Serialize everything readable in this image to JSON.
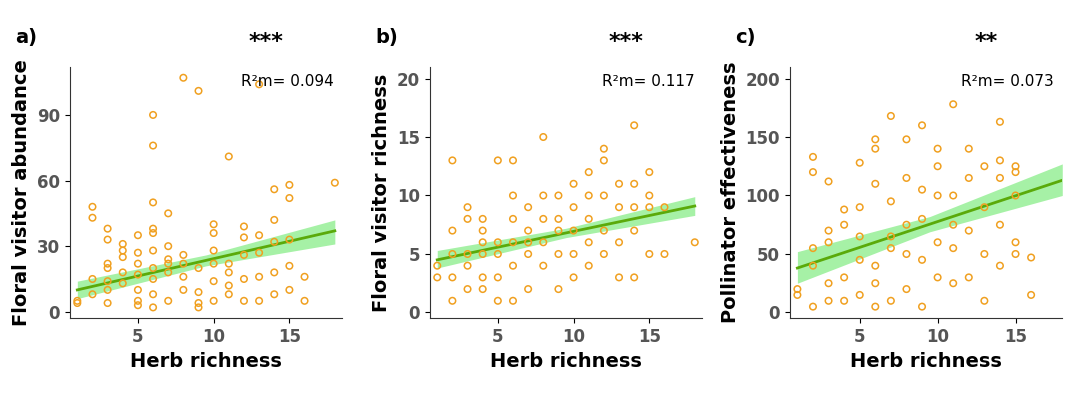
{
  "chart_data": [
    {
      "type": "scatter",
      "panel": "a)",
      "annotations": [
        "***",
        "R²m= 0.094"
      ],
      "x_label": "Herb richness",
      "y_label": "Floral visitor abundance",
      "color": "#f0a020",
      "marker": "o",
      "x": [
        1,
        1,
        2,
        2,
        2,
        2,
        3,
        3,
        3,
        3,
        3,
        3,
        3,
        4,
        4,
        4,
        4,
        4,
        5,
        5,
        5,
        5,
        5,
        5,
        5,
        6,
        6,
        6,
        6,
        6,
        6,
        6,
        6,
        6,
        6,
        7,
        7,
        7,
        7,
        7,
        7,
        8,
        8,
        8,
        8,
        8,
        9,
        9,
        9,
        9,
        9,
        10,
        10,
        10,
        10,
        10,
        10,
        11,
        11,
        11,
        11,
        11,
        12,
        12,
        12,
        12,
        12,
        13,
        13,
        13,
        13,
        13,
        14,
        14,
        14,
        14,
        14,
        15,
        15,
        15,
        15,
        15,
        16,
        16,
        18
      ],
      "values": [
        4,
        5,
        8,
        15,
        43,
        48,
        4,
        10,
        14,
        20,
        22,
        33,
        38,
        13,
        18,
        25,
        28,
        31,
        3,
        5,
        10,
        17,
        22,
        27,
        35,
        2,
        8,
        15,
        20,
        28,
        36,
        38,
        50,
        76,
        90,
        5,
        18,
        22,
        24,
        30,
        45,
        10,
        16,
        22,
        26,
        107,
        2,
        4,
        9,
        20,
        101,
        5,
        14,
        22,
        28,
        36,
        40,
        8,
        12,
        18,
        22,
        71,
        5,
        15,
        26,
        34,
        39,
        5,
        16,
        27,
        35,
        104,
        8,
        18,
        32,
        42,
        56,
        10,
        21,
        33,
        52,
        58,
        5,
        16,
        59
      ],
      "fit": {
        "x": [
          1,
          9.5,
          18
        ],
        "values": [
          10,
          23.5,
          37
        ],
        "lower": [
          6,
          21,
          31
        ],
        "upper": [
          14,
          26,
          42
        ],
        "color": "#5aaa0a",
        "band_color": "#90ee90"
      },
      "xlim": [
        0.5,
        18.5
      ],
      "ylim": [
        -3,
        112
      ],
      "xticks": [
        5,
        10,
        15
      ],
      "yticks": [
        0,
        30,
        60,
        90
      ]
    },
    {
      "type": "scatter",
      "panel": "b)",
      "annotations": [
        "***",
        "R²m= 0.117"
      ],
      "x_label": "Herb richness",
      "y_label": "Floral visitor richness",
      "color": "#f0a020",
      "marker": "o",
      "x": [
        1,
        1,
        2,
        2,
        2,
        2,
        2,
        3,
        3,
        3,
        3,
        3,
        4,
        4,
        4,
        4,
        4,
        4,
        5,
        5,
        5,
        5,
        5,
        6,
        6,
        6,
        6,
        6,
        6,
        7,
        7,
        7,
        7,
        7,
        8,
        8,
        8,
        8,
        8,
        9,
        9,
        9,
        9,
        9,
        10,
        10,
        10,
        10,
        10,
        11,
        11,
        11,
        11,
        11,
        12,
        12,
        12,
        12,
        12,
        13,
        13,
        13,
        13,
        14,
        14,
        14,
        14,
        14,
        15,
        15,
        15,
        15,
        16,
        16,
        18
      ],
      "values": [
        3,
        4,
        1,
        3,
        5,
        7,
        13,
        2,
        4,
        5,
        8,
        9,
        2,
        3,
        5,
        6,
        7,
        8,
        1,
        3,
        5,
        6,
        13,
        1,
        4,
        6,
        8,
        10,
        13,
        2,
        5,
        6,
        7,
        9,
        4,
        6,
        8,
        10,
        15,
        2,
        5,
        7,
        8,
        10,
        3,
        5,
        7,
        9,
        11,
        4,
        6,
        8,
        10,
        12,
        5,
        7,
        10,
        13,
        14,
        3,
        6,
        9,
        11,
        3,
        7,
        9,
        11,
        16,
        5,
        9,
        10,
        12,
        5,
        9,
        6
      ],
      "fit": {
        "x": [
          1,
          9.5,
          18
        ],
        "values": [
          4.5,
          6.8,
          9.1
        ],
        "lower": [
          3.8,
          6.4,
          8.3
        ],
        "upper": [
          5.3,
          7.2,
          9.9
        ],
        "color": "#5aaa0a",
        "band_color": "#90ee90"
      },
      "xlim": [
        0.5,
        18.5
      ],
      "ylim": [
        -0.5,
        21
      ],
      "xticks": [
        5,
        10,
        15
      ],
      "yticks": [
        0,
        5,
        10,
        15,
        20
      ]
    },
    {
      "type": "scatter",
      "panel": "c)",
      "annotations": [
        "**",
        "R²m= 0.073"
      ],
      "x_label": "Herb richness",
      "y_label": "Pollinator effectiveness",
      "color": "#f0a020",
      "marker": "o",
      "x": [
        1,
        1,
        2,
        2,
        2,
        2,
        2,
        3,
        3,
        3,
        3,
        3,
        4,
        4,
        4,
        4,
        5,
        5,
        5,
        5,
        5,
        6,
        6,
        6,
        6,
        6,
        6,
        7,
        7,
        7,
        7,
        7,
        8,
        8,
        8,
        8,
        8,
        9,
        9,
        9,
        9,
        9,
        10,
        10,
        10,
        10,
        10,
        11,
        11,
        11,
        11,
        11,
        12,
        12,
        12,
        12,
        13,
        13,
        13,
        13,
        14,
        14,
        14,
        14,
        14,
        15,
        15,
        15,
        15,
        15,
        16,
        16
      ],
      "values": [
        15,
        20,
        5,
        40,
        55,
        120,
        133,
        10,
        25,
        60,
        70,
        112,
        10,
        30,
        75,
        88,
        15,
        45,
        65,
        90,
        128,
        5,
        25,
        40,
        110,
        140,
        148,
        10,
        55,
        65,
        95,
        168,
        20,
        50,
        75,
        115,
        148,
        5,
        45,
        80,
        105,
        160,
        30,
        60,
        100,
        125,
        140,
        25,
        55,
        75,
        100,
        178,
        30,
        70,
        115,
        140,
        10,
        50,
        90,
        125,
        40,
        75,
        115,
        130,
        163,
        50,
        60,
        100,
        120,
        125,
        15,
        47
      ],
      "fit": {
        "x": [
          1,
          9.5,
          18
        ],
        "values": [
          38,
          75.5,
          113
        ],
        "lower": [
          25,
          69,
          100
        ],
        "upper": [
          52,
          82,
          127
        ],
        "color": "#5aaa0a",
        "band_color": "#90ee90"
      },
      "xlim": [
        0.5,
        18
      ],
      "ylim": [
        -5,
        210
      ],
      "xticks": [
        5,
        10,
        15
      ],
      "yticks": [
        0,
        50,
        100,
        150,
        200
      ]
    }
  ]
}
